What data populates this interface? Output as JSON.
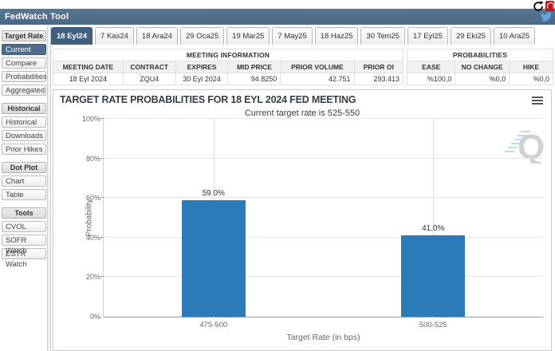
{
  "titlebar": {
    "title": "FedWatch Tool"
  },
  "tabs": {
    "labels": [
      "18 Eyl24",
      "7 Kas24",
      "18 Ara24",
      "29 Oca25",
      "19 Mar25",
      "7 May25",
      "18 Haz25",
      "30 Tem25",
      "17 Eyl25",
      "29 Eki25",
      "10 Ara25"
    ],
    "active": "18 Eyl24"
  },
  "sidebar": {
    "sections": [
      {
        "header": "Target Rate",
        "items": [
          "Current",
          "Compare",
          "Probabilities",
          "Aggregated"
        ]
      },
      {
        "header": "Historical",
        "items": [
          "Historical",
          "Downloads",
          "Prior Hikes"
        ]
      },
      {
        "header": "Dot Plot",
        "items": [
          "Chart",
          "Table"
        ]
      },
      {
        "header": "Tools",
        "items": [
          "CVOL",
          "SOFR Watch",
          "ESTR Watch"
        ]
      }
    ],
    "active_item": "Current"
  },
  "meeting_info": {
    "title": "MEETING INFORMATION",
    "columns": [
      "MEETING DATE",
      "CONTRACT",
      "EXPIRES",
      "MID PRICE",
      "PRIOR VOLUME",
      "PRIOR OI"
    ],
    "row": [
      "18 Eyl 2024",
      "ZQU4",
      "30 Eyl 2024",
      "94.8250",
      "42.751",
      "293.413"
    ]
  },
  "probabilities": {
    "title": "PROBABILITIES",
    "columns": [
      "EASE",
      "NO CHANGE",
      "HIKE"
    ],
    "row": [
      "%100,0",
      "%0,0",
      "%0,0"
    ]
  },
  "chart_data": {
    "type": "bar",
    "title": "TARGET RATE PROBABILITIES FOR 18 EYL 2024 FED MEETING",
    "subtitle": "Current target rate is 525-550",
    "categories": [
      "475-500",
      "500-525"
    ],
    "values": [
      59.0,
      41.0
    ],
    "value_labels": [
      "59.0%",
      "41.0%"
    ],
    "xlabel": "Target Rate (in bps)",
    "ylabel": "Probability",
    "ylim": [
      0,
      100
    ],
    "yticks": [
      "0%",
      "20%",
      "40%",
      "60%",
      "80%",
      "100%"
    ],
    "bar_color": "#2b7bb9",
    "grid": true,
    "legend_position": "none"
  },
  "colors": {
    "titlebar_bg": "#4f6e8c",
    "active_tab_bg": "#41607f",
    "bar_blue": "#2b7bb9",
    "twitter_blue": "#5ea9dd",
    "pdf_red": "#c11b17"
  }
}
